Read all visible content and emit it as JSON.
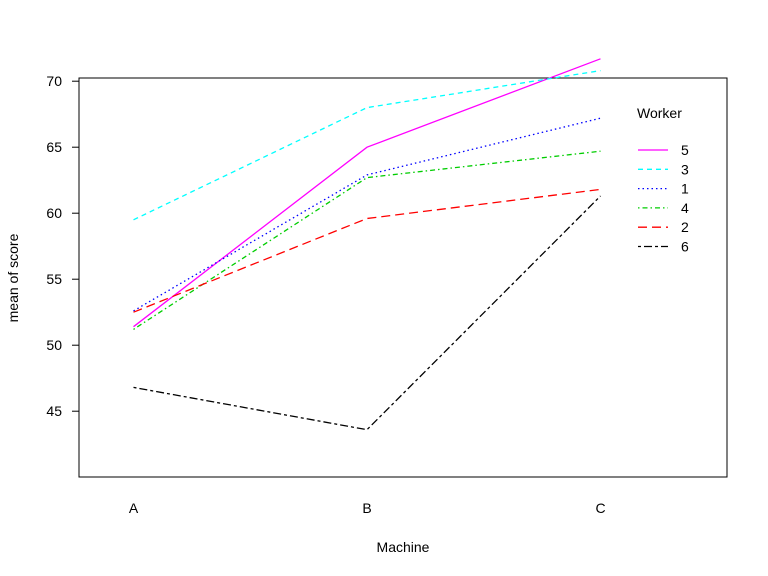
{
  "chart_data": {
    "type": "line",
    "title": "",
    "xlabel": "Machine",
    "ylabel": "mean of  score",
    "categories": [
      "A",
      "B",
      "C"
    ],
    "ylim": [
      42.5,
      73
    ],
    "yticks": [
      45,
      50,
      55,
      60,
      65,
      70
    ],
    "grid": false,
    "legend": {
      "title": "Worker",
      "placement": "top-right",
      "order": [
        "5",
        "3",
        "1",
        "4",
        "2",
        "6"
      ]
    },
    "series": [
      {
        "name": "5",
        "values": [
          51.4,
          65.0,
          71.7
        ],
        "color": "#ff00ff",
        "dash": "solid"
      },
      {
        "name": "3",
        "values": [
          59.5,
          68.0,
          70.8
        ],
        "color": "#00ffff",
        "dash": "dashed"
      },
      {
        "name": "1",
        "values": [
          52.6,
          62.9,
          67.2
        ],
        "color": "#0000ff",
        "dash": "dotted"
      },
      {
        "name": "4",
        "values": [
          51.2,
          62.7,
          64.7
        ],
        "color": "#00cd00",
        "dash": "dotdash"
      },
      {
        "name": "2",
        "values": [
          52.5,
          59.6,
          61.8
        ],
        "color": "#ff0000",
        "dash": "longdash"
      },
      {
        "name": "6",
        "values": [
          46.8,
          43.6,
          61.3
        ],
        "color": "#000000",
        "dash": "twodash"
      }
    ]
  }
}
